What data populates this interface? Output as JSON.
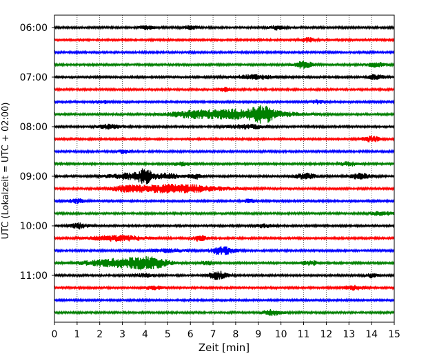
{
  "chart_data": {
    "type": "line",
    "title": "",
    "xlabel": "Zeit  [min]",
    "ylabel": "UTC (Lokalzeit = UTC + 02:00)",
    "xlim": [
      0,
      15
    ],
    "x_ticks": [
      "0",
      "1",
      "2",
      "3",
      "4",
      "5",
      "6",
      "7",
      "8",
      "9",
      "10",
      "11",
      "12",
      "13",
      "14",
      "15"
    ],
    "y_ticks": [
      "06:00",
      "07:00",
      "08:00",
      "09:00",
      "10:00",
      "11:00"
    ],
    "grid": "vertical dotted",
    "trace_colors": [
      "#000000",
      "#ff0000",
      "#0000ff",
      "#008000"
    ],
    "series": [
      {
        "start": "06:00",
        "color": "#000000",
        "events": [
          {
            "t": 4.1,
            "amp": 3,
            "dur": 0.3
          },
          {
            "t": 6.0,
            "amp": 3,
            "dur": 0.3
          },
          {
            "t": 9.8,
            "amp": 3,
            "dur": 0.3
          }
        ]
      },
      {
        "start": "06:15",
        "color": "#ff0000",
        "events": [
          {
            "t": 11.2,
            "amp": 3,
            "dur": 0.3
          }
        ]
      },
      {
        "start": "06:30",
        "color": "#0000ff",
        "events": []
      },
      {
        "start": "06:45",
        "color": "#008000",
        "events": [
          {
            "t": 11.0,
            "amp": 5,
            "dur": 0.4
          },
          {
            "t": 14.2,
            "amp": 3,
            "dur": 0.4
          }
        ]
      },
      {
        "start": "07:00",
        "color": "#000000",
        "events": [
          {
            "t": 8.8,
            "amp": 3,
            "dur": 1.0
          },
          {
            "t": 14.2,
            "amp": 4,
            "dur": 0.3
          }
        ]
      },
      {
        "start": "07:15",
        "color": "#ff0000",
        "events": [
          {
            "t": 7.6,
            "amp": 3,
            "dur": 0.3
          }
        ]
      },
      {
        "start": "07:30",
        "color": "#0000ff",
        "events": [
          {
            "t": 2.1,
            "amp": 2.5,
            "dur": 0.3
          },
          {
            "t": 11.6,
            "amp": 2.5,
            "dur": 0.3
          }
        ]
      },
      {
        "start": "07:45",
        "color": "#008000",
        "events": [
          {
            "t": 8.2,
            "amp": 7,
            "dur": 2.2
          },
          {
            "t": 6.0,
            "amp": 3,
            "dur": 0.9
          },
          {
            "t": 9.2,
            "amp": 8,
            "dur": 0.4
          }
        ]
      },
      {
        "start": "08:00",
        "color": "#000000",
        "events": [
          {
            "t": 2.4,
            "amp": 3,
            "dur": 0.5
          },
          {
            "t": 8.5,
            "amp": 3,
            "dur": 0.8
          }
        ]
      },
      {
        "start": "08:15",
        "color": "#ff0000",
        "events": [
          {
            "t": 14.0,
            "amp": 4,
            "dur": 0.4
          }
        ]
      },
      {
        "start": "08:30",
        "color": "#0000ff",
        "events": [
          {
            "t": 3.0,
            "amp": 2.5,
            "dur": 0.3
          }
        ]
      },
      {
        "start": "08:45",
        "color": "#008000",
        "events": [
          {
            "t": 13.0,
            "amp": 3,
            "dur": 0.4
          },
          {
            "t": 5.6,
            "amp": 2.5,
            "dur": 0.4
          }
        ]
      },
      {
        "start": "09:00",
        "color": "#000000",
        "events": [
          {
            "t": 4.0,
            "amp": 9,
            "dur": 0.35
          },
          {
            "t": 3.2,
            "amp": 4,
            "dur": 0.9
          },
          {
            "t": 5.0,
            "amp": 4,
            "dur": 0.5
          },
          {
            "t": 6.2,
            "amp": 4,
            "dur": 0.3
          },
          {
            "t": 11.1,
            "amp": 4,
            "dur": 0.5
          },
          {
            "t": 13.5,
            "amp": 4,
            "dur": 0.5
          }
        ]
      },
      {
        "start": "09:15",
        "color": "#ff0000",
        "events": [
          {
            "t": 5.3,
            "amp": 6,
            "dur": 2.0
          },
          {
            "t": 3.2,
            "amp": 3,
            "dur": 0.6
          }
        ]
      },
      {
        "start": "09:30",
        "color": "#0000ff",
        "events": [
          {
            "t": 1.0,
            "amp": 3,
            "dur": 0.4
          },
          {
            "t": 8.6,
            "amp": 2.5,
            "dur": 0.3
          }
        ]
      },
      {
        "start": "09:45",
        "color": "#008000",
        "events": [
          {
            "t": 14.4,
            "amp": 3,
            "dur": 0.5
          }
        ]
      },
      {
        "start": "10:00",
        "color": "#000000",
        "events": [
          {
            "t": 1.1,
            "amp": 4,
            "dur": 0.4
          },
          {
            "t": 9.3,
            "amp": 2.5,
            "dur": 0.4
          }
        ]
      },
      {
        "start": "10:15",
        "color": "#ff0000",
        "events": [
          {
            "t": 2.8,
            "amp": 4,
            "dur": 1.2
          },
          {
            "t": 6.4,
            "amp": 4,
            "dur": 0.3
          }
        ]
      },
      {
        "start": "10:30",
        "color": "#0000ff",
        "events": [
          {
            "t": 7.4,
            "amp": 6,
            "dur": 0.5
          },
          {
            "t": 5.0,
            "amp": 2.5,
            "dur": 0.7
          }
        ]
      },
      {
        "start": "10:45",
        "color": "#008000",
        "events": [
          {
            "t": 2.9,
            "amp": 6,
            "dur": 1.6
          },
          {
            "t": 4.2,
            "amp": 6,
            "dur": 0.8
          },
          {
            "t": 6.8,
            "amp": 3,
            "dur": 0.3
          },
          {
            "t": 11.3,
            "amp": 3,
            "dur": 0.4
          }
        ]
      },
      {
        "start": "11:00",
        "color": "#000000",
        "events": [
          {
            "t": 7.2,
            "amp": 6,
            "dur": 0.4
          },
          {
            "t": 4.0,
            "amp": 2.5,
            "dur": 0.4
          },
          {
            "t": 14.0,
            "amp": 3,
            "dur": 0.3
          }
        ]
      },
      {
        "start": "11:15",
        "color": "#ff0000",
        "events": [
          {
            "t": 13.2,
            "amp": 3,
            "dur": 0.5
          },
          {
            "t": 4.4,
            "amp": 2.5,
            "dur": 0.4
          }
        ]
      },
      {
        "start": "11:30",
        "color": "#0000ff",
        "events": []
      },
      {
        "start": "11:45",
        "color": "#008000",
        "events": [
          {
            "t": 9.6,
            "amp": 4,
            "dur": 0.4
          }
        ]
      }
    ]
  }
}
